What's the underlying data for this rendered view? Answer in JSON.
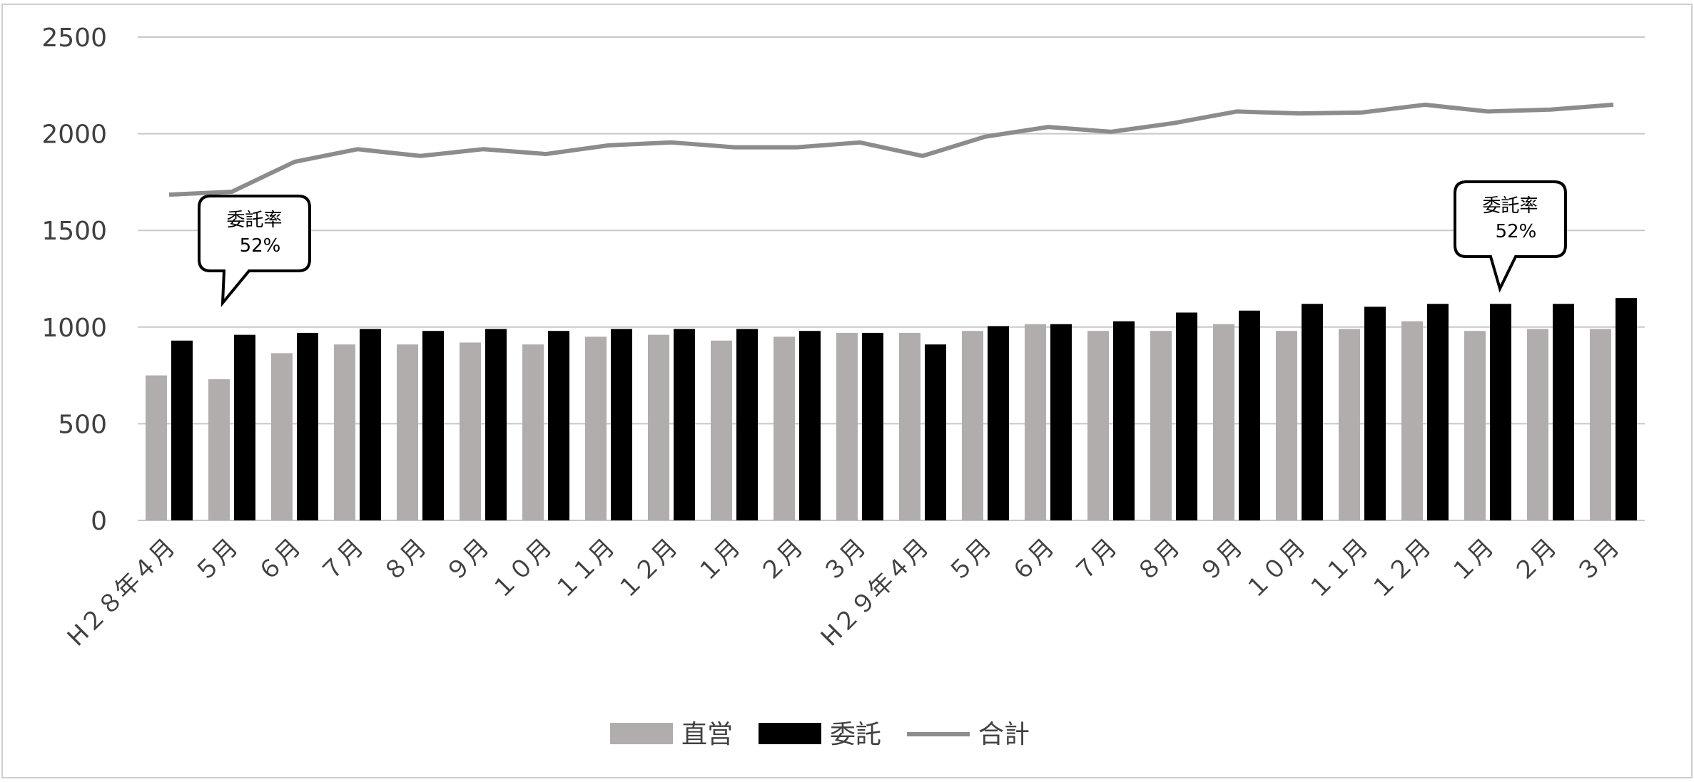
{
  "chart_data": {
    "type": "bar",
    "title": "",
    "xlabel": "",
    "ylabel": "",
    "ylim": [
      0,
      2500
    ],
    "y_ticks": [
      "0",
      "500",
      "1000",
      "1500",
      "2000",
      "2500"
    ],
    "grid": true,
    "legend_position": "bottom-center",
    "categories": [
      "H28年4月",
      "5月",
      "6月",
      "7月",
      "8月",
      "9月",
      "10月",
      "11月",
      "12月",
      "1月",
      "2月",
      "3月",
      "H29年4月",
      "5月",
      "6月",
      "7月",
      "8月",
      "9月",
      "10月",
      "11月",
      "12月",
      "1月",
      "2月",
      "3月"
    ],
    "category_labels": [
      "H２８年４月",
      "５月",
      "６月",
      "７月",
      "８月",
      "９月",
      "１０月",
      "１１月",
      "１２月",
      "１月",
      "２月",
      "３月",
      "H２９年４月",
      "５月",
      "６月",
      "７月",
      "８月",
      "９月",
      "１０月",
      "１１月",
      "１２月",
      "１月",
      "２月",
      "３月"
    ],
    "series": [
      {
        "name": "直営",
        "type": "bar",
        "color": "#b2adad",
        "values": [
          750,
          730,
          865,
          910,
          910,
          920,
          910,
          950,
          960,
          930,
          950,
          970,
          970,
          980,
          1015,
          980,
          980,
          1015,
          980,
          990,
          1030,
          980,
          990,
          990
        ]
      },
      {
        "name": "委託",
        "type": "bar",
        "color": "#000000",
        "values": [
          930,
          960,
          970,
          990,
          980,
          990,
          980,
          990,
          990,
          990,
          980,
          970,
          910,
          1005,
          1015,
          1030,
          1075,
          1085,
          1120,
          1105,
          1120,
          1120,
          1120,
          1150
        ]
      },
      {
        "name": "合計",
        "type": "line",
        "color": "#8c8c8c",
        "values": [
          1685,
          1700,
          1855,
          1920,
          1885,
          1920,
          1895,
          1940,
          1955,
          1930,
          1930,
          1955,
          1885,
          1985,
          2035,
          2010,
          2055,
          2115,
          2105,
          2110,
          2150,
          2115,
          2125,
          2150
        ]
      }
    ],
    "annotations": [
      {
        "line1": "委託率",
        "line2": "52%",
        "category_index": 1
      },
      {
        "line1": "委託率",
        "line2": "52%",
        "category_index": 21
      }
    ]
  }
}
